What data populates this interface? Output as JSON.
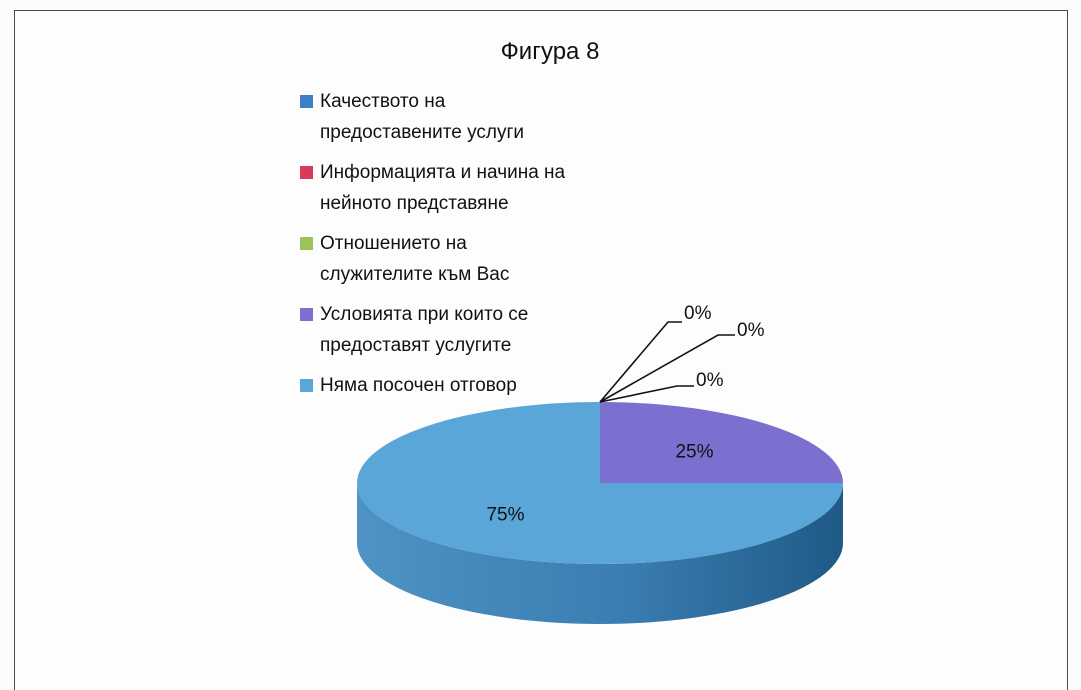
{
  "chart_data": {
    "type": "pie",
    "title": "Фигура 8",
    "three_d": true,
    "legend_position": "left",
    "slices": [
      {
        "name": "Качеството на предоставените услуги",
        "legend_lines": [
          "Качеството на",
          "предоставените услуги"
        ],
        "value": 0,
        "label": "0%",
        "color": "#3f7fc4"
      },
      {
        "name": "Информацията и начина на нейното представяне",
        "legend_lines": [
          "Информацията и начина на",
          "нейното представяне"
        ],
        "value": 0,
        "label": "0%",
        "color": "#d83b5a"
      },
      {
        "name": "Отношението на служителите към Вас",
        "legend_lines": [
          "Отношението на",
          "служителите към Вас"
        ],
        "value": 0,
        "label": "0%",
        "color": "#9cc25a"
      },
      {
        "name": "Условията при които се предоставят услугите",
        "legend_lines": [
          "Условията при които се",
          "предоставят услугите"
        ],
        "value": 25,
        "label": "25%",
        "color": "#7b70cf"
      },
      {
        "name": "Няма посочен отговор",
        "legend_lines": [
          "Няма посочен отговор"
        ],
        "value": 75,
        "label": "75%",
        "color": "#5aa6d8"
      }
    ]
  }
}
